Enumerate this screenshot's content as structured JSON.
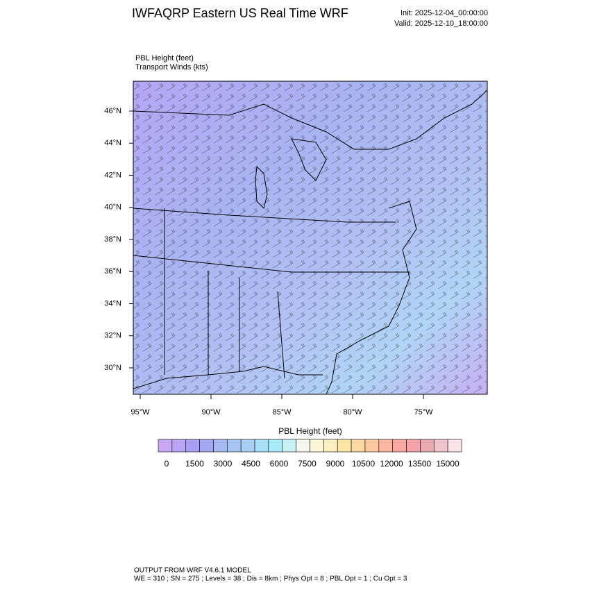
{
  "header": {
    "title": "IWFAQRP Eastern US Real Time WRF",
    "init": "Init: 2025-12-04_00:00:00",
    "valid": "Valid: 2025-12-10_18:00:00"
  },
  "field_labels": [
    "PBL Height   (feet)",
    "Transport Winds   (kts)"
  ],
  "map": {
    "lat_labels": [
      "46°N",
      "44°N",
      "42°N",
      "40°N",
      "38°N",
      "36°N",
      "34°N",
      "32°N",
      "30°N"
    ],
    "lon_labels": [
      "95°W",
      "90°W",
      "85°W",
      "80°W",
      "75°W"
    ]
  },
  "colorbar": {
    "title": "PBL Height  (feet)",
    "colors": [
      "#c9a8f5",
      "#b9a4f6",
      "#a9a0f5",
      "#a4a8f3",
      "#a8b8f2",
      "#a8c4f2",
      "#a8d0f4",
      "#a8def6",
      "#a8ecf8",
      "#c8f2f6",
      "#f4f8f0",
      "#fdf6d8",
      "#fdf0c0",
      "#fde6a8",
      "#fdd8a0",
      "#fcc8a0",
      "#fab8a0",
      "#f8a8a0",
      "#f4a4a8",
      "#eaa8b0",
      "#f0c4cc",
      "#fae4e8"
    ],
    "labels": [
      0,
      1500,
      3000,
      4500,
      6000,
      7500,
      9000,
      10500,
      12000,
      13500,
      15000
    ]
  },
  "footer": [
    "OUTPUT FROM WRF V4.6.1 MODEL",
    "WE = 310 ; SN = 275 ; Levels = 38 ; Dis = 8km ; Phys Opt = 8 ; PBL Opt = 1 ; Cu Opt = 3"
  ]
}
